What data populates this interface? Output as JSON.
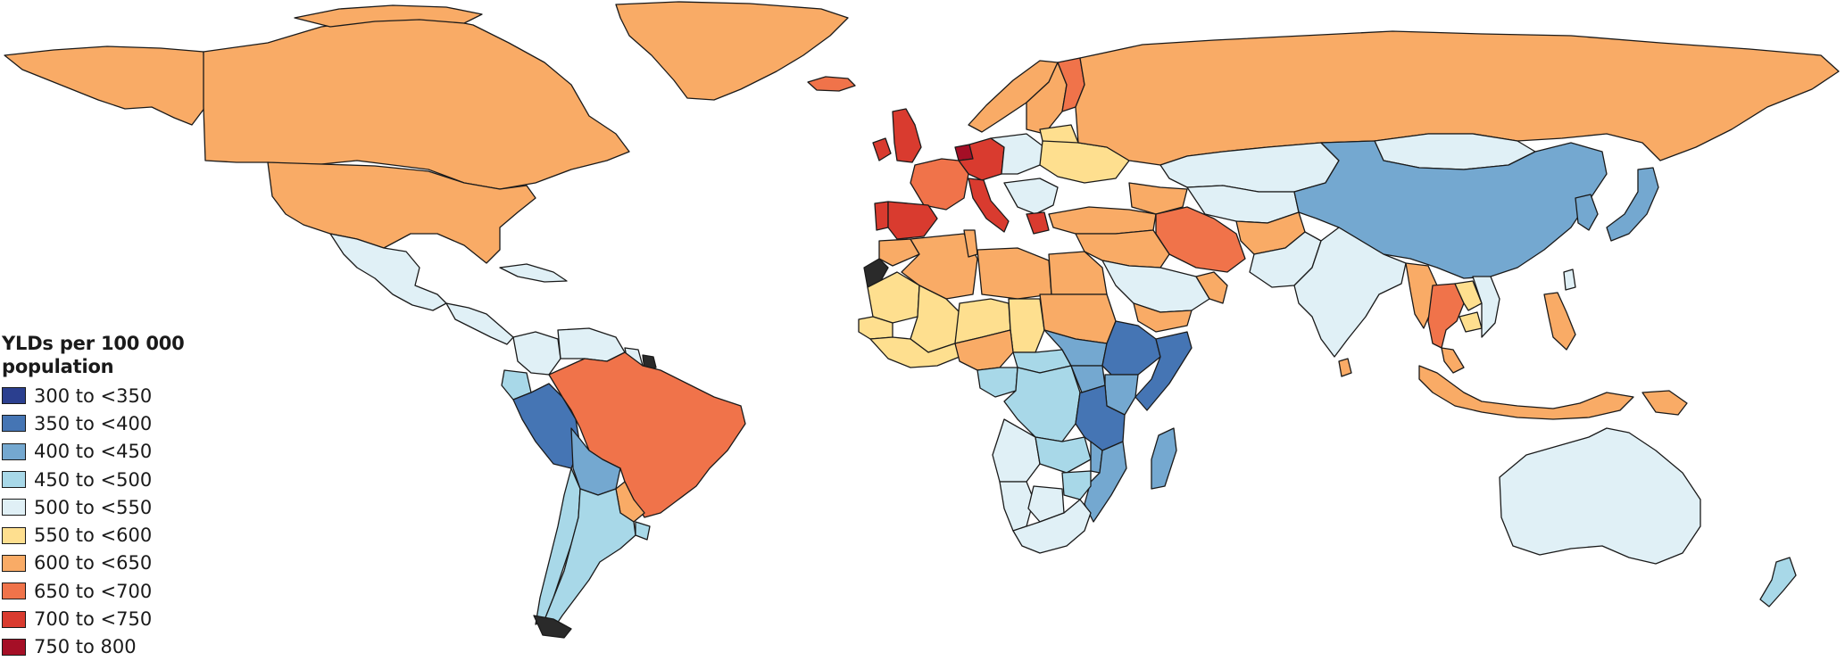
{
  "legend": {
    "title": "YLDs per 100 000 population",
    "bins": [
      {
        "label": "300 to <350",
        "color": "#2b3f8f"
      },
      {
        "label": "350 to <400",
        "color": "#4575b4"
      },
      {
        "label": "400 to <450",
        "color": "#74a8d0"
      },
      {
        "label": "450 to <500",
        "color": "#a8d8e8"
      },
      {
        "label": "500 to <550",
        "color": "#e0f0f6"
      },
      {
        "label": "550 to <600",
        "color": "#fedf8f"
      },
      {
        "label": "600 to <650",
        "color": "#f9ab66"
      },
      {
        "label": "650 to <700",
        "color": "#f0734a"
      },
      {
        "label": "700 to <750",
        "color": "#d93b2f"
      },
      {
        "label": "750 to 800",
        "color": "#a50f26"
      }
    ]
  },
  "no_data_color": "#2a2a2a",
  "regions": [
    {
      "name": "Canada",
      "bin": 6
    },
    {
      "name": "United States",
      "bin": 6
    },
    {
      "name": "Alaska",
      "bin": 6
    },
    {
      "name": "Greenland",
      "bin": 6
    },
    {
      "name": "Iceland",
      "bin": 7
    },
    {
      "name": "Mexico",
      "bin": 4
    },
    {
      "name": "Central America",
      "bin": 4
    },
    {
      "name": "Cuba",
      "bin": 4
    },
    {
      "name": "Colombia",
      "bin": 4
    },
    {
      "name": "Venezuela",
      "bin": 4
    },
    {
      "name": "Guyana",
      "bin": 4
    },
    {
      "name": "French Guiana",
      "bin": null
    },
    {
      "name": "Ecuador",
      "bin": 3
    },
    {
      "name": "Peru",
      "bin": 1
    },
    {
      "name": "Brazil",
      "bin": 7
    },
    {
      "name": "Bolivia",
      "bin": 2
    },
    {
      "name": "Paraguay",
      "bin": 6
    },
    {
      "name": "Chile",
      "bin": 3
    },
    {
      "name": "Argentina",
      "bin": 3
    },
    {
      "name": "Uruguay",
      "bin": 3
    },
    {
      "name": "Tierra del Fuego",
      "bin": null
    },
    {
      "name": "United Kingdom",
      "bin": 8
    },
    {
      "name": "Ireland",
      "bin": 8
    },
    {
      "name": "France",
      "bin": 7
    },
    {
      "name": "Spain",
      "bin": 8
    },
    {
      "name": "Portugal",
      "bin": 8
    },
    {
      "name": "Germany",
      "bin": 8
    },
    {
      "name": "Netherlands",
      "bin": 9
    },
    {
      "name": "Italy",
      "bin": 8
    },
    {
      "name": "Central Europe",
      "bin": 4
    },
    {
      "name": "Balkans",
      "bin": 4
    },
    {
      "name": "Greece",
      "bin": 8
    },
    {
      "name": "Eastern Europe",
      "bin": 5
    },
    {
      "name": "Baltic States",
      "bin": 5
    },
    {
      "name": "Norway",
      "bin": 6
    },
    {
      "name": "Sweden",
      "bin": 6
    },
    {
      "name": "Finland",
      "bin": 7
    },
    {
      "name": "Russia",
      "bin": 6
    },
    {
      "name": "Kazakhstan",
      "bin": 4
    },
    {
      "name": "Central Asia",
      "bin": 4
    },
    {
      "name": "Mongolia",
      "bin": 4
    },
    {
      "name": "China",
      "bin": 2
    },
    {
      "name": "Korea",
      "bin": 2
    },
    {
      "name": "Japan",
      "bin": 2
    },
    {
      "name": "Turkey",
      "bin": 6
    },
    {
      "name": "Caucasus",
      "bin": 6
    },
    {
      "name": "Iran",
      "bin": 7
    },
    {
      "name": "Afghanistan",
      "bin": 6
    },
    {
      "name": "Pakistan",
      "bin": 4
    },
    {
      "name": "Middle East",
      "bin": 6
    },
    {
      "name": "Saudi Arabia",
      "bin": 4
    },
    {
      "name": "Oman",
      "bin": 6
    },
    {
      "name": "Yemen",
      "bin": 6
    },
    {
      "name": "India",
      "bin": 4
    },
    {
      "name": "Sri Lanka",
      "bin": 6
    },
    {
      "name": "Myanmar",
      "bin": 6
    },
    {
      "name": "Thailand",
      "bin": 7
    },
    {
      "name": "Laos",
      "bin": 5
    },
    {
      "name": "Vietnam",
      "bin": 4
    },
    {
      "name": "Cambodia",
      "bin": 5
    },
    {
      "name": "Malaysia",
      "bin": 6
    },
    {
      "name": "Indonesia",
      "bin": 6
    },
    {
      "name": "Philippines",
      "bin": 6
    },
    {
      "name": "Papua New Guinea",
      "bin": 6
    },
    {
      "name": "Taiwan",
      "bin": 4
    },
    {
      "name": "Australia",
      "bin": 4
    },
    {
      "name": "New Zealand",
      "bin": 3
    },
    {
      "name": "Western Sahara",
      "bin": null
    },
    {
      "name": "Morocco",
      "bin": 6
    },
    {
      "name": "Algeria",
      "bin": 6
    },
    {
      "name": "Tunisia",
      "bin": 6
    },
    {
      "name": "Libya",
      "bin": 6
    },
    {
      "name": "Egypt",
      "bin": 6
    },
    {
      "name": "Sudan",
      "bin": 6
    },
    {
      "name": "Mauritania",
      "bin": 5
    },
    {
      "name": "Mali",
      "bin": 5
    },
    {
      "name": "Niger",
      "bin": 5
    },
    {
      "name": "Chad",
      "bin": 5
    },
    {
      "name": "Senegal",
      "bin": 5
    },
    {
      "name": "West Africa coast",
      "bin": 5
    },
    {
      "name": "Nigeria",
      "bin": 6
    },
    {
      "name": "Central African Republic",
      "bin": 3
    },
    {
      "name": "South Sudan",
      "bin": 2
    },
    {
      "name": "Ethiopia",
      "bin": 1
    },
    {
      "name": "Somalia",
      "bin": 1
    },
    {
      "name": "Kenya",
      "bin": 2
    },
    {
      "name": "Cameroon",
      "bin": 3
    },
    {
      "name": "DR Congo",
      "bin": 3
    },
    {
      "name": "Uganda",
      "bin": 2
    },
    {
      "name": "Tanzania",
      "bin": 1
    },
    {
      "name": "Angola",
      "bin": 4
    },
    {
      "name": "Zambia",
      "bin": 3
    },
    {
      "name": "Malawi",
      "bin": 2
    },
    {
      "name": "Mozambique",
      "bin": 2
    },
    {
      "name": "Zimbabwe",
      "bin": 3
    },
    {
      "name": "Namibia",
      "bin": 4
    },
    {
      "name": "Botswana",
      "bin": 4
    },
    {
      "name": "South Africa",
      "bin": 4
    },
    {
      "name": "Madagascar",
      "bin": 2
    }
  ]
}
